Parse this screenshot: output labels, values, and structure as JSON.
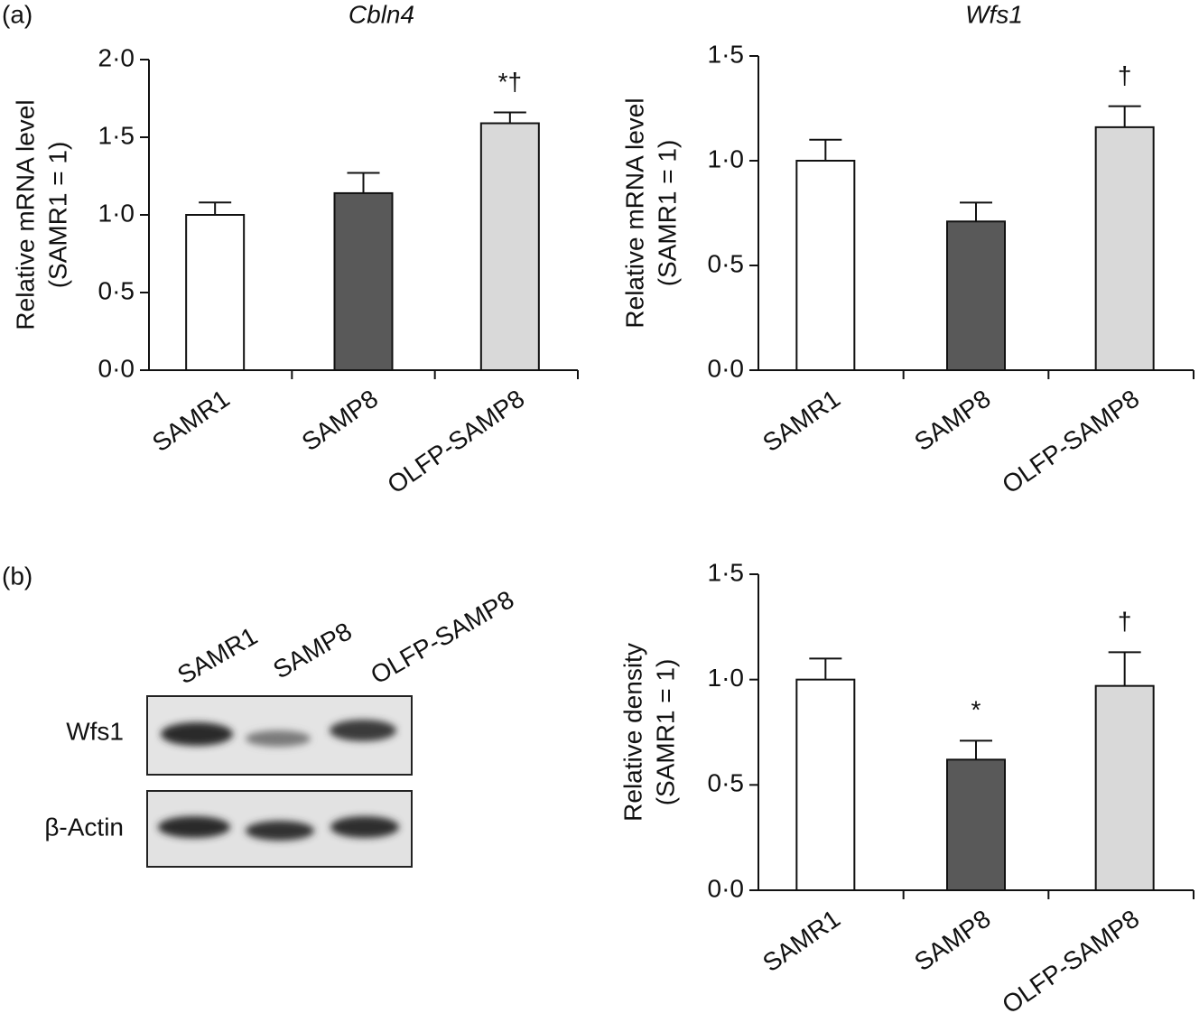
{
  "panel_labels": [
    "(a)",
    "(b)"
  ],
  "blot": {
    "lanes": [
      "SAMR1",
      "SAMP8",
      "OLFP-SAMP8"
    ],
    "bands": [
      "Wfs1",
      "β-Actin"
    ]
  },
  "chart_data": [
    {
      "type": "bar",
      "title": "Cbln4",
      "ylabel": [
        "Relative mRNA level",
        "(SAMR1 = 1)"
      ],
      "categories": [
        "SAMR1",
        "SAMP8",
        "OLFP-SAMP8"
      ],
      "values": [
        1.0,
        1.14,
        1.59
      ],
      "errors": [
        0.08,
        0.13,
        0.07
      ],
      "colors": [
        "#ffffff",
        "#595959",
        "#d9d9d9"
      ],
      "annotations": [
        null,
        null,
        "*†"
      ],
      "ylim": [
        0,
        2
      ],
      "yticks": [
        {
          "value": 0,
          "label": "0·0"
        },
        {
          "value": 0.5,
          "label": "0·5"
        },
        {
          "value": 1,
          "label": "1·0"
        },
        {
          "value": 1.5,
          "label": "1·5"
        },
        {
          "value": 2,
          "label": "2·0"
        }
      ]
    },
    {
      "type": "bar",
      "title": "Wfs1",
      "ylabel": [
        "Relative mRNA level",
        "(SAMR1 = 1)"
      ],
      "categories": [
        "SAMR1",
        "SAMP8",
        "OLFP-SAMP8"
      ],
      "values": [
        1.0,
        0.71,
        1.16
      ],
      "errors": [
        0.1,
        0.09,
        0.1
      ],
      "colors": [
        "#ffffff",
        "#595959",
        "#d9d9d9"
      ],
      "annotations": [
        null,
        null,
        "†"
      ],
      "ylim": [
        0,
        1.5
      ],
      "yticks": [
        {
          "value": 0,
          "label": "0·0"
        },
        {
          "value": 0.5,
          "label": "0·5"
        },
        {
          "value": 1,
          "label": "1·0"
        },
        {
          "value": 1.5,
          "label": "1·5"
        }
      ]
    },
    {
      "type": "bar",
      "ylabel": [
        "Relative density",
        "(SAMR1 = 1)"
      ],
      "categories": [
        "SAMR1",
        "SAMP8",
        "OLFP-SAMP8"
      ],
      "values": [
        1.0,
        0.62,
        0.97
      ],
      "errors": [
        0.1,
        0.09,
        0.16
      ],
      "colors": [
        "#ffffff",
        "#595959",
        "#d9d9d9"
      ],
      "annotations": [
        null,
        "*",
        "†"
      ],
      "ylim": [
        0,
        1.5
      ],
      "yticks": [
        {
          "value": 0,
          "label": "0·0"
        },
        {
          "value": 0.5,
          "label": "0·5"
        },
        {
          "value": 1,
          "label": "1·0"
        },
        {
          "value": 1.5,
          "label": "1·5"
        }
      ]
    }
  ]
}
